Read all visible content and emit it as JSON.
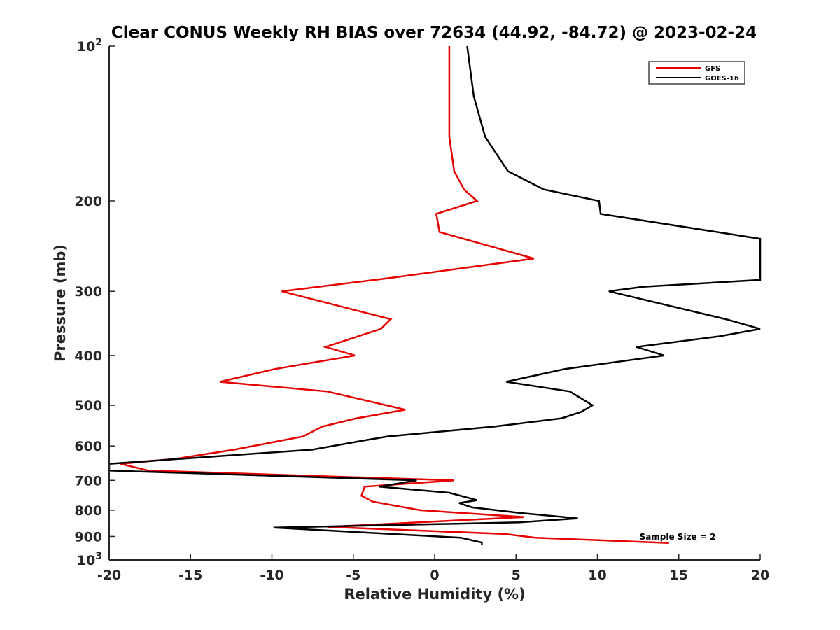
{
  "chart_data": {
    "type": "line",
    "title": "Clear CONUS Weekly RH BIAS over 72634 (44.92, -84.72) @ 2023-02-24",
    "xlabel": "Relative Humidity (%)",
    "ylabel": "Pressure (mb)",
    "xlim": [
      -20,
      20
    ],
    "ylim": [
      100,
      1000
    ],
    "yscale": "log",
    "grid": false,
    "legend_position": "top-right",
    "x_ticks": [
      -20,
      -15,
      -10,
      -5,
      0,
      5,
      10,
      15,
      20
    ],
    "x_tick_labels": [
      "-20",
      "-15",
      "-10",
      "-5",
      "0",
      "5",
      "10",
      "15",
      "20"
    ],
    "y_ticks": [
      {
        "value": 100,
        "base": "10",
        "exp": "2"
      },
      {
        "value": 200,
        "label": "200"
      },
      {
        "value": 300,
        "label": "300"
      },
      {
        "value": 400,
        "label": "400"
      },
      {
        "value": 500,
        "label": "500"
      },
      {
        "value": 600,
        "label": "600"
      },
      {
        "value": 700,
        "label": "700"
      },
      {
        "value": 800,
        "label": "800"
      },
      {
        "value": 900,
        "label": "900"
      },
      {
        "value": 1000,
        "base": "10",
        "exp": "3"
      }
    ],
    "annotation": "Sample Size = 2",
    "series": [
      {
        "name": "GFS",
        "color": "#e60000",
        "points": [
          [
            0.9,
            100
          ],
          [
            0.9,
            125
          ],
          [
            0.9,
            150
          ],
          [
            1.2,
            175
          ],
          [
            1.8,
            190
          ],
          [
            2.6,
            200
          ],
          [
            0.1,
            212
          ],
          [
            0.3,
            230
          ],
          [
            6.1,
            259
          ],
          [
            -2.9,
            283
          ],
          [
            -9.4,
            300
          ],
          [
            -2.7,
            340
          ],
          [
            -3.3,
            355
          ],
          [
            -6.7,
            385
          ],
          [
            -4.9,
            400
          ],
          [
            -9.8,
            425
          ],
          [
            -13.2,
            450
          ],
          [
            -6.6,
            470
          ],
          [
            -1.8,
            510
          ],
          [
            -4.8,
            530
          ],
          [
            -6.9,
            550
          ],
          [
            -8.1,
            575
          ],
          [
            -12.3,
            610
          ],
          [
            -15.8,
            635
          ],
          [
            -19.3,
            650
          ],
          [
            -17.6,
            670
          ],
          [
            1.2,
            700
          ],
          [
            -4.3,
            720
          ],
          [
            -4.5,
            750
          ],
          [
            -3.8,
            770
          ],
          [
            -0.9,
            800
          ],
          [
            5.5,
            825
          ],
          [
            -6.6,
            862
          ],
          [
            4.3,
            890
          ],
          [
            6.2,
            905
          ],
          [
            14.4,
            927
          ]
        ]
      },
      {
        "name": "GOES-16",
        "color": "#000000",
        "points": [
          [
            2.0,
            100
          ],
          [
            2.4,
            125
          ],
          [
            3.1,
            150
          ],
          [
            4.5,
            175
          ],
          [
            6.7,
            190
          ],
          [
            10.1,
            200
          ],
          [
            10.2,
            212
          ],
          [
            20.0,
            237
          ],
          [
            20.0,
            285
          ],
          [
            12.8,
            294
          ],
          [
            10.7,
            300
          ],
          [
            17.9,
            340
          ],
          [
            20.0,
            355
          ],
          [
            17.5,
            367
          ],
          [
            12.4,
            385
          ],
          [
            14.1,
            400
          ],
          [
            8.0,
            425
          ],
          [
            4.4,
            450
          ],
          [
            8.3,
            470
          ],
          [
            9.7,
            500
          ],
          [
            9.0,
            515
          ],
          [
            7.8,
            530
          ],
          [
            3.7,
            550
          ],
          [
            -2.9,
            575
          ],
          [
            -4.3,
            585
          ],
          [
            -7.5,
            610
          ],
          [
            -20.0,
            650
          ],
          [
            -20.0,
            670
          ],
          [
            -1.1,
            700
          ],
          [
            -3.4,
            720
          ],
          [
            0.9,
            740
          ],
          [
            2.6,
            765
          ],
          [
            1.5,
            775
          ],
          [
            2.3,
            790
          ],
          [
            5.2,
            810
          ],
          [
            8.8,
            830
          ],
          [
            5.2,
            845
          ],
          [
            -9.9,
            865
          ],
          [
            1.6,
            905
          ],
          [
            2.9,
            925
          ],
          [
            2.9,
            935
          ]
        ]
      }
    ]
  }
}
